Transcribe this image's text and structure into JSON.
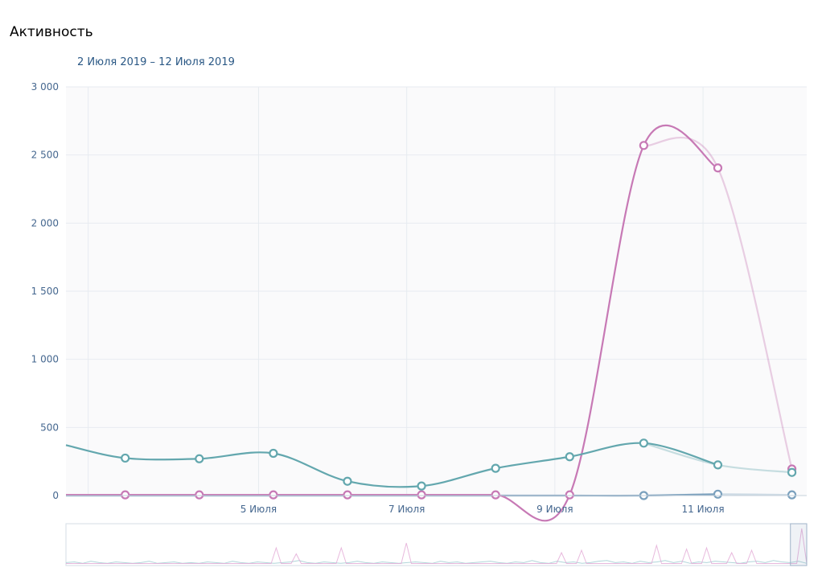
{
  "header": {
    "title": "Активность",
    "range": "2 Июля 2019 – 12 Июля 2019"
  },
  "chart_data": {
    "type": "line",
    "title": "Активность",
    "subtitle": "2 Июля 2019 – 12 Июля 2019",
    "ylim": [
      0,
      3000
    ],
    "y_ticks": [
      0,
      500,
      1000,
      1500,
      2000,
      2500,
      3000
    ],
    "y_tick_labels": [
      "0",
      "500",
      "1 000",
      "1 500",
      "2 000",
      "2 500",
      "3 000"
    ],
    "x_ticks": [
      {
        "x": 4.6,
        "label": "5 Июля"
      },
      {
        "x": 6.6,
        "label": "7 Июля"
      },
      {
        "x": 8.6,
        "label": "9 Июля"
      },
      {
        "x": 10.6,
        "label": "11 Июля"
      }
    ],
    "xlim": [
      2.0,
      12.0
    ],
    "grid": true,
    "series": [
      {
        "color": "#63a7ae",
        "x": [
          2.0,
          2.8,
          3.8,
          4.8,
          5.8,
          6.8,
          7.8,
          8.8,
          9.8,
          10.8,
          11.8
        ],
        "values": [
          370,
          275,
          270,
          310,
          105,
          70,
          200,
          285,
          385,
          225,
          170
        ],
        "markers": [
          false,
          true,
          true,
          true,
          true,
          true,
          true,
          true,
          true,
          true,
          true
        ],
        "faded_last": true
      },
      {
        "color": "#c779b5",
        "x": [
          2.0,
          2.8,
          3.8,
          4.8,
          5.8,
          6.8,
          7.8,
          8.8,
          9.8,
          10.8,
          11.8
        ],
        "values": [
          5,
          5,
          5,
          5,
          5,
          5,
          5,
          5,
          2570,
          2405,
          195
        ],
        "markers": [
          false,
          true,
          true,
          true,
          true,
          true,
          true,
          true,
          true,
          true,
          true
        ],
        "faded_last": true
      },
      {
        "color": "#7aa0bd",
        "x": [
          2.0,
          2.8,
          3.8,
          4.8,
          5.8,
          6.8,
          7.8,
          8.8,
          9.8,
          10.8,
          11.8
        ],
        "values": [
          0,
          0,
          0,
          0,
          0,
          0,
          0,
          0,
          0,
          10,
          5
        ],
        "markers": [
          false,
          false,
          false,
          false,
          false,
          false,
          false,
          false,
          true,
          true,
          true
        ],
        "faded_last": true
      }
    ]
  },
  "navigator": {
    "series_a": [
      3,
      4,
      2,
      5,
      3,
      2,
      4,
      3,
      2,
      3,
      5,
      2,
      3,
      4,
      2,
      3,
      2,
      4,
      3,
      2,
      5,
      3,
      2,
      4,
      3,
      2,
      3,
      4,
      6,
      3,
      2,
      4,
      3,
      2,
      3,
      5,
      3,
      2,
      4,
      3,
      2,
      3,
      4,
      3,
      2,
      5,
      3,
      4,
      2,
      3,
      4,
      5,
      3,
      2,
      4,
      3,
      6,
      3,
      2,
      5,
      3,
      4,
      2,
      3,
      5,
      6,
      3,
      4,
      2,
      5,
      3,
      4,
      6,
      3,
      5,
      2,
      4,
      3,
      5,
      4,
      3,
      2,
      4,
      5,
      3,
      6,
      4,
      3,
      5,
      2
    ],
    "series_b": [
      1,
      1,
      1,
      1,
      1,
      1,
      1,
      1,
      1,
      1,
      1,
      1,
      1,
      1,
      1,
      1,
      1,
      1,
      1,
      1,
      1,
      1,
      1,
      1,
      1,
      1,
      1,
      1,
      1,
      1,
      1,
      1,
      1,
      1,
      1,
      1,
      1,
      1,
      1,
      1,
      1,
      1,
      14,
      1,
      1,
      1,
      9,
      1,
      1,
      1,
      1,
      1,
      1,
      1,
      1,
      14,
      1,
      1,
      1,
      1,
      1,
      1,
      1,
      1,
      1,
      1,
      1,
      1,
      18,
      1,
      1,
      1,
      1,
      1,
      1,
      1,
      1,
      1,
      1,
      1,
      1,
      1,
      1,
      1,
      1,
      1,
      1,
      1,
      1,
      1,
      1,
      1,
      1,
      1,
      1,
      1,
      1,
      1,
      1,
      10,
      1,
      1,
      1,
      12,
      1,
      1,
      1,
      1,
      1,
      1,
      1,
      1,
      1,
      1,
      1,
      1,
      1,
      1,
      16,
      1,
      1,
      1,
      1,
      1,
      13,
      1,
      1,
      1,
      14,
      1,
      1,
      1,
      1,
      10,
      1,
      1,
      1,
      12,
      1,
      1,
      1,
      1,
      1,
      1,
      1,
      1,
      1,
      30,
      1
    ],
    "window_start": 0.978
  }
}
